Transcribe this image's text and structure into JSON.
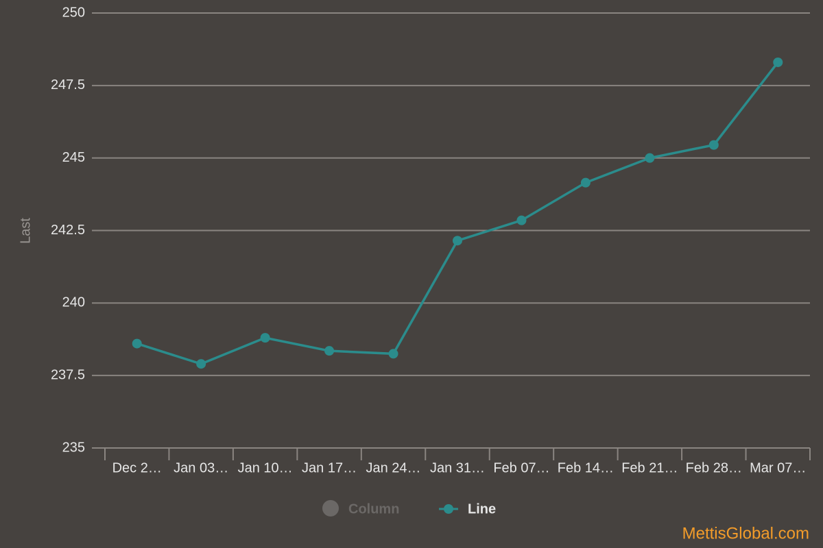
{
  "chart_data": {
    "type": "line",
    "y_label": "Last",
    "categories": [
      "Dec 2…",
      "Jan 03…",
      "Jan 10…",
      "Jan 17…",
      "Jan 24…",
      "Jan 31…",
      "Feb 07…",
      "Feb 14…",
      "Feb 21…",
      "Feb 28…",
      "Mar 07…"
    ],
    "series": [
      {
        "name": "Column",
        "color": "#6b6866",
        "visible": false,
        "values": [
          null,
          null,
          null,
          null,
          null,
          null,
          null,
          null,
          null,
          null,
          null
        ]
      },
      {
        "name": "Line",
        "color": "#2b8c8c",
        "values": [
          238.6,
          237.9,
          238.8,
          238.35,
          238.25,
          242.15,
          242.85,
          244.15,
          245.0,
          245.45,
          248.3
        ]
      }
    ],
    "ylim": [
      235,
      250
    ],
    "yticks": [
      235,
      237.5,
      240,
      242.5,
      245,
      247.5,
      250
    ],
    "grid": true,
    "watermark": "MettisGlobal.com"
  }
}
